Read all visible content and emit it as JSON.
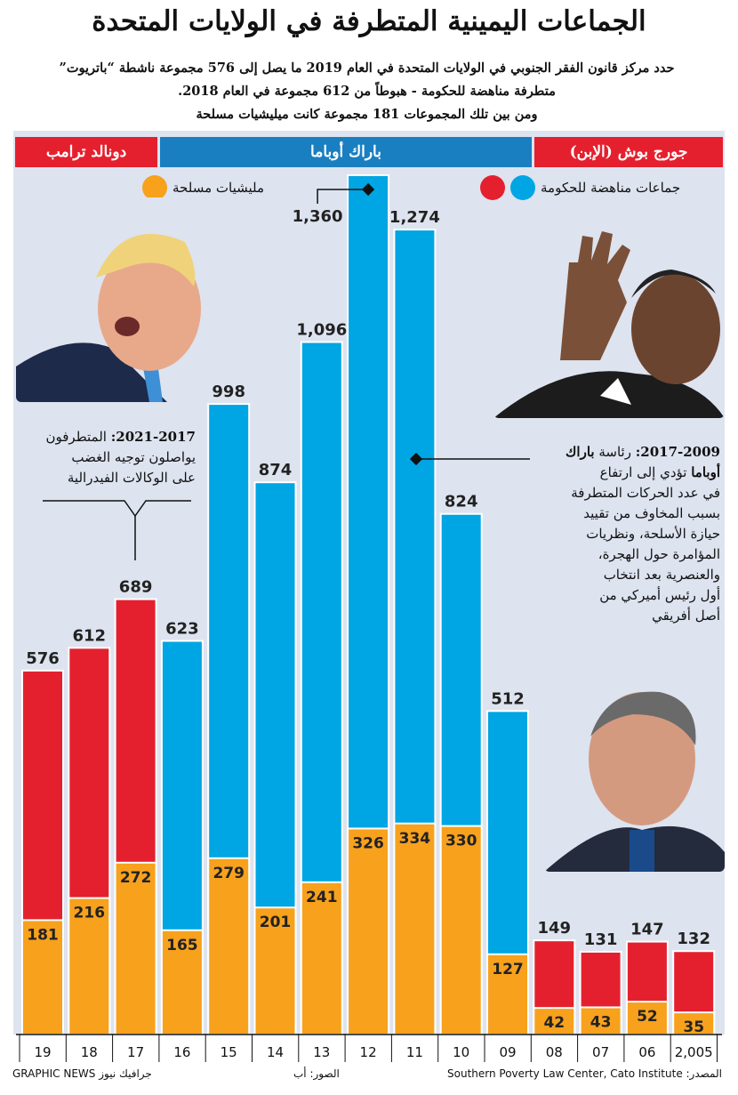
{
  "title": "الجماعات اليمينية المتطرفة في الولايات المتحدة",
  "intro": {
    "line1": "حدد مركز قانون الفقر الجنوبي في الولايات المتحدة في العام 2019 ما يصل إلى 576 مجموعة ناشطة “باتريوت”",
    "line2": "متطرفة مناهضة للحكومة - هبوطاً من 612 مجموعة في العام 2018.",
    "line3": "ومن بين تلك المجموعات 181 مجموعة كانت ميليشيات مسلحة"
  },
  "presidents": {
    "trump": "دونالد ترامب",
    "obama": "باراك أوباما",
    "bush": "جورج بوش (الإبن)"
  },
  "legend": {
    "militia": "مليشيات مسلحة",
    "antigov": "جماعات مناهضة للحكومة"
  },
  "annotations": {
    "trump_bold": "2021-2017:",
    "trump_text1": " المتطرفون",
    "trump_text2": "يواصلون توجيه الغضب",
    "trump_text3": "على الوكالات الفيدرالية",
    "obama_bold1": "2017-2009:",
    "obama_text1": " رئاسة ",
    "obama_bold2": "باراك",
    "obama_bold3": "أوباما",
    "obama_text2": " تؤدي إلى ارتفاع",
    "obama_lines": [
      "في عدد الحركات المتطرفة",
      "بسبب المخاوف من تقييد",
      "حيازة الأسلحة، ونظريات",
      "المؤامرة حول الهجرة،",
      "والعنصرية بعد انتخاب",
      "أول رئيس أميركي من",
      "أصل أفريقي"
    ]
  },
  "footer": {
    "source": "المصدر: Southern Poverty Law Center, Cato Institute",
    "photos": "الصور: أب",
    "brand": "GRAPHIC NEWS جرافيك نيوز"
  },
  "colors": {
    "red": "#e5202e",
    "blue": "#00a5e3",
    "orange": "#f7a11d",
    "band_blue": "#1a7fc1",
    "panel": "#dde3ef"
  },
  "chart_data": {
    "type": "bar",
    "categories": [
      "19",
      "18",
      "17",
      "16",
      "15",
      "14",
      "13",
      "12",
      "11",
      "10",
      "09",
      "08",
      "07",
      "06",
      "2005"
    ],
    "series": [
      {
        "name": "جماعات مناهضة للحكومة",
        "values": [
          576,
          612,
          689,
          623,
          998,
          874,
          1096,
          1360,
          1274,
          824,
          512,
          149,
          131,
          147,
          132
        ]
      },
      {
        "name": "مليشيات مسلحة",
        "values": [
          181,
          216,
          272,
          165,
          279,
          201,
          241,
          326,
          334,
          330,
          127,
          42,
          43,
          52,
          35
        ]
      }
    ],
    "total_colors": [
      "red",
      "red",
      "red",
      "blue",
      "blue",
      "blue",
      "blue",
      "blue",
      "blue",
      "blue",
      "blue",
      "red",
      "red",
      "red",
      "red"
    ],
    "ylim": [
      0,
      1360
    ]
  }
}
